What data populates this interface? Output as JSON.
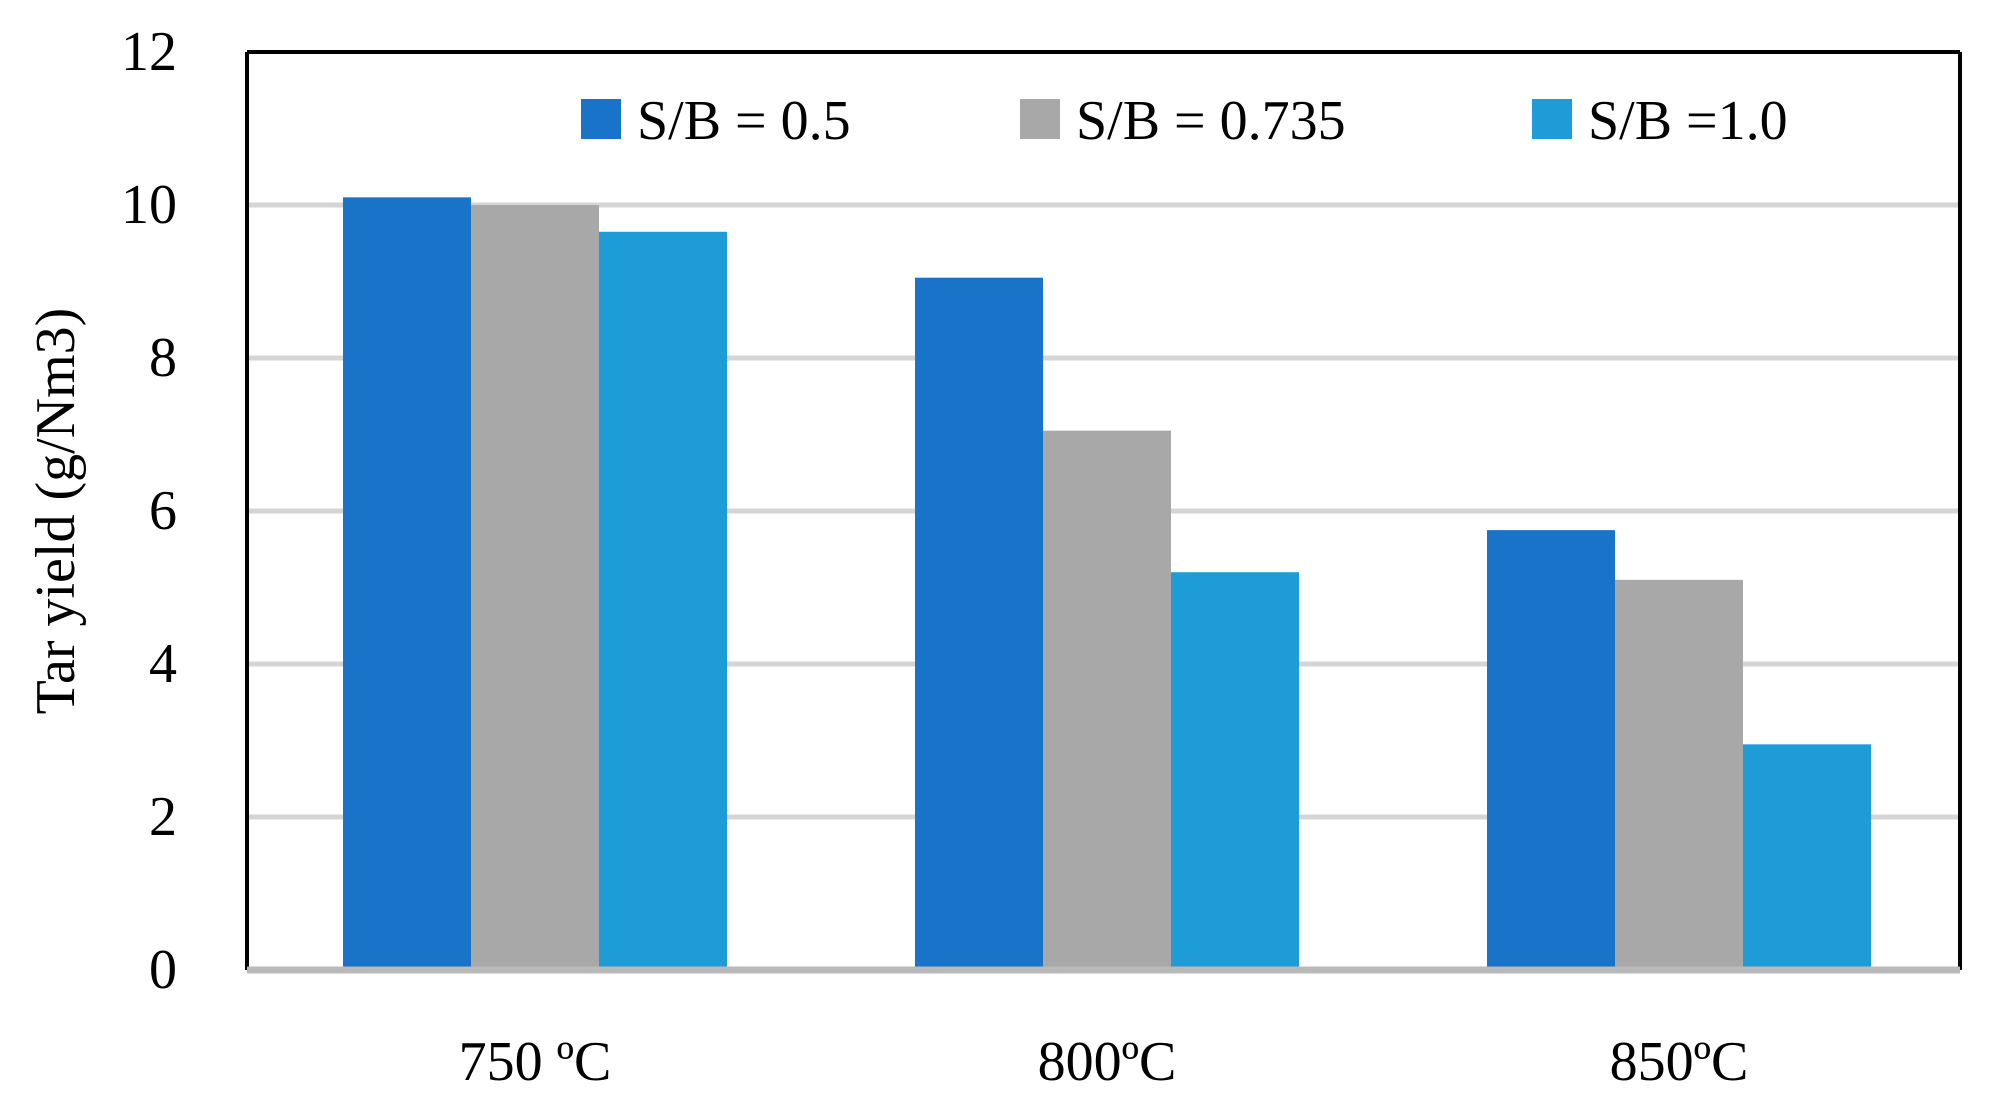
{
  "chart_data": {
    "type": "bar",
    "title": "",
    "xlabel": "",
    "ylabel": "Tar yield (g/Nm3)",
    "ylim": [
      0,
      12
    ],
    "yticks": [
      0,
      2,
      4,
      6,
      8,
      10,
      12
    ],
    "grid": true,
    "legend_position": "top",
    "categories": [
      "750 ºC",
      "800ºC",
      "850ºC"
    ],
    "series": [
      {
        "name": "S/B = 0.5",
        "color": "#1873C9",
        "values": [
          10.1,
          9.05,
          5.75
        ]
      },
      {
        "name": "S/B = 0.735",
        "color": "#A8A8A8",
        "values": [
          10.0,
          7.05,
          5.1
        ]
      },
      {
        "name": "S/B =1.0",
        "color": "#1E9CD8",
        "values": [
          9.65,
          5.2,
          2.95
        ]
      }
    ]
  }
}
